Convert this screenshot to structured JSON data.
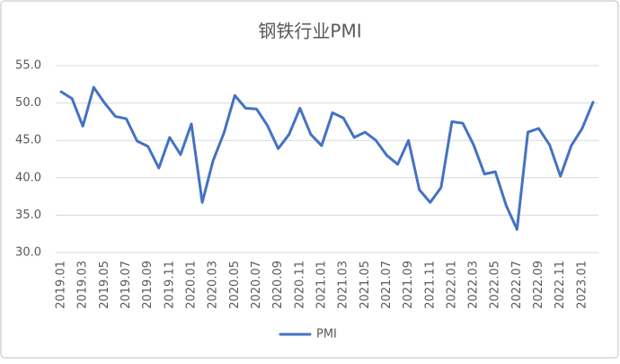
{
  "chart_data": {
    "type": "line",
    "title": "钢铁行业PMI",
    "categories": [
      "2019.01",
      null,
      "2019.03",
      null,
      "2019.05",
      null,
      "2019.07",
      null,
      "2019.09",
      null,
      "2019.11",
      null,
      "2020.01",
      null,
      "2020.03",
      null,
      "2020.05",
      null,
      "2020.07",
      null,
      "2020.09",
      null,
      "2020.11",
      null,
      "2021.01",
      null,
      "2021.03",
      null,
      "2021.05",
      null,
      "2021.07",
      null,
      "2021.09",
      null,
      "2021.11",
      null,
      "2022.01",
      null,
      "2022.03",
      null,
      "2022.05",
      null,
      "2022.07",
      null,
      "2022.09",
      null,
      "2022.11",
      null,
      "2023.01",
      null
    ],
    "series": [
      {
        "name": "PMI",
        "color": "#4472c4",
        "values": [
          51.5,
          50.6,
          46.9,
          52.1,
          50.0,
          48.2,
          47.9,
          44.9,
          44.2,
          41.3,
          45.4,
          43.1,
          47.2,
          36.7,
          42.3,
          46.0,
          51.0,
          49.3,
          49.2,
          47.0,
          43.9,
          45.8,
          49.3,
          45.8,
          44.3,
          48.7,
          48.0,
          45.4,
          46.1,
          45.0,
          43.0,
          41.8,
          45.0,
          38.4,
          36.7,
          38.7,
          47.5,
          47.3,
          44.4,
          40.5,
          40.8,
          36.3,
          33.1,
          46.1,
          46.6,
          44.4,
          40.2,
          44.3,
          46.6,
          50.1
        ]
      }
    ],
    "ylim": [
      30,
      55
    ],
    "yticks": [
      {
        "value": 30,
        "label": "30.0"
      },
      {
        "value": 35,
        "label": "35.0"
      },
      {
        "value": 40,
        "label": "40.0"
      },
      {
        "value": 45,
        "label": "45.0"
      },
      {
        "value": 50,
        "label": "50.0"
      },
      {
        "value": 55,
        "label": "55.0"
      }
    ],
    "grid": true,
    "legend": "bottom"
  }
}
